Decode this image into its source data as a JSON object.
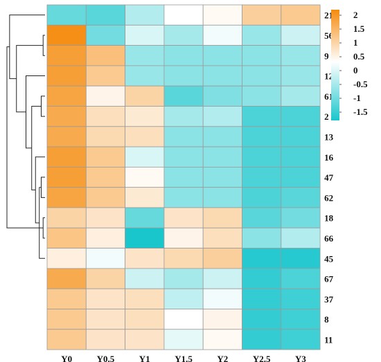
{
  "chart_data": {
    "type": "heatmap",
    "title": "",
    "xlabel": "",
    "ylabel": "",
    "columns": [
      "Y0",
      "Y0.5",
      "Y1",
      "Y1.5",
      "Y2",
      "Y2.5",
      "Y3"
    ],
    "rows": [
      "21",
      "56",
      "9",
      "12",
      "61",
      "2",
      "13",
      "16",
      "47",
      "62",
      "18",
      "66",
      "45",
      "67",
      "37",
      "8",
      "11"
    ],
    "values": [
      [
        -1.2,
        -1.3,
        -0.6,
        0.0,
        0.1,
        0.9,
        1.0
      ],
      [
        2.1,
        -1.1,
        -0.3,
        -0.7,
        -0.1,
        -0.8,
        -0.4
      ],
      [
        1.8,
        1.2,
        -0.8,
        -0.9,
        -0.9,
        -0.9,
        -0.8
      ],
      [
        1.8,
        1.0,
        -0.8,
        -0.9,
        -0.9,
        -0.9,
        -0.8
      ],
      [
        1.7,
        0.2,
        0.8,
        -1.3,
        -1.0,
        -0.9,
        -0.7
      ],
      [
        1.6,
        0.6,
        0.4,
        -0.7,
        -0.6,
        -1.4,
        -1.4
      ],
      [
        1.6,
        0.7,
        0.6,
        -0.9,
        -0.9,
        -1.4,
        -1.4
      ],
      [
        1.8,
        1.0,
        -0.3,
        -0.9,
        -0.9,
        -1.4,
        -1.4
      ],
      [
        1.8,
        1.0,
        0.1,
        -0.9,
        -0.9,
        -1.4,
        -1.4
      ],
      [
        1.7,
        1.0,
        0.4,
        -0.9,
        -0.9,
        -1.4,
        -1.3
      ],
      [
        0.8,
        0.5,
        -1.2,
        0.5,
        0.7,
        -1.3,
        -1.1
      ],
      [
        1.1,
        0.3,
        -1.9,
        0.2,
        0.6,
        -0.9,
        -0.6
      ],
      [
        0.3,
        -0.1,
        0.5,
        0.7,
        0.9,
        -1.7,
        -1.7
      ],
      [
        1.6,
        0.8,
        -0.4,
        -0.7,
        -0.4,
        -1.6,
        -1.4
      ],
      [
        1.0,
        0.5,
        0.6,
        -0.5,
        -0.1,
        -1.6,
        -1.5
      ],
      [
        1.0,
        0.5,
        0.6,
        0.0,
        0.2,
        -1.6,
        -1.5
      ],
      [
        1.0,
        0.5,
        0.5,
        -0.2,
        0.1,
        -1.6,
        -1.5
      ]
    ],
    "colorbar": {
      "ticks": [
        2,
        1.5,
        1,
        0.5,
        0,
        -0.5,
        -1,
        -1.5
      ],
      "tick_labels": [
        "2",
        "1.5",
        "1",
        "0.5",
        "0",
        "-0.5",
        "-1",
        "-1.5"
      ],
      "range": [
        -1.8,
        2.2
      ],
      "colors": {
        "low": "#19c6cc",
        "mid": "#ffffff",
        "high": "#f58a0b"
      }
    },
    "dendrogram": {
      "side": "left",
      "merges": [
        [
          1,
          2,
          0.05
        ],
        [
          9,
          10,
          0.05
        ],
        [
          14,
          15,
          0.05
        ],
        [
          15,
          16,
          0.06
        ],
        [
          3,
          4,
          0.1
        ],
        [
          6,
          7,
          0.1
        ],
        [
          6,
          8,
          0.15
        ],
        [
          5,
          6,
          0.25
        ],
        [
          3,
          5,
          0.35
        ],
        [
          11,
          12,
          0.2
        ],
        [
          12,
          13,
          0.35
        ],
        [
          2,
          3,
          0.5
        ],
        [
          13,
          14,
          0.45
        ],
        [
          11,
          12,
          0.62
        ],
        [
          1,
          2,
          0.75
        ],
        [
          0,
          1,
          0.93
        ],
        [
          0,
          2,
          1.0
        ]
      ]
    },
    "grid": true,
    "legend": "right"
  }
}
